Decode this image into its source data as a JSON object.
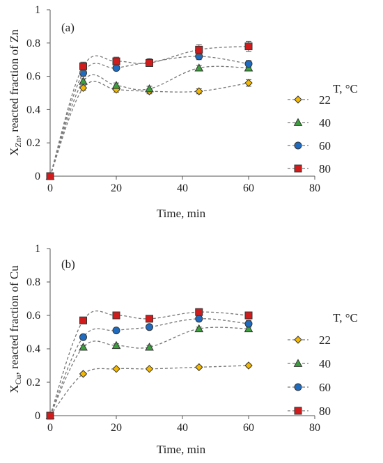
{
  "chart_data": [
    {
      "type": "scatter",
      "panel_label": "(a)",
      "xlabel": "Time, min",
      "ylabel_main": "X",
      "ylabel_sub": "Zn",
      "ylabel_rest": ", reacted fraction of Zn",
      "xlim": [
        0,
        80
      ],
      "ylim": [
        0,
        1
      ],
      "xticks": [
        0,
        20,
        40,
        60,
        80
      ],
      "yticks": [
        0,
        0.2,
        0.4,
        0.6,
        0.8,
        1
      ],
      "ytick_labels": [
        "0",
        "0.2",
        "0.4",
        "0.6",
        "0.8",
        "1"
      ],
      "grid": false,
      "legend_title": "T, °C",
      "legend_position": "right",
      "series": [
        {
          "name": "22",
          "marker": "diamond",
          "color": "#f5b800",
          "x": [
            0,
            10,
            20,
            30,
            45,
            60
          ],
          "y": [
            0,
            0.53,
            0.52,
            0.51,
            0.51,
            0.56
          ],
          "err": [
            0,
            0.015,
            0.015,
            0.015,
            0.015,
            0.02
          ]
        },
        {
          "name": "40",
          "marker": "triangle",
          "color": "#3ca03c",
          "x": [
            0,
            10,
            20,
            30,
            45,
            60
          ],
          "y": [
            0,
            0.57,
            0.545,
            0.525,
            0.65,
            0.65
          ],
          "err": [
            0,
            0.015,
            0.015,
            0.015,
            0.015,
            0.015
          ]
        },
        {
          "name": "60",
          "marker": "circle",
          "color": "#1f6bbf",
          "x": [
            0,
            10,
            20,
            30,
            45,
            60
          ],
          "y": [
            0,
            0.62,
            0.65,
            0.685,
            0.72,
            0.675
          ],
          "err": [
            0,
            0.02,
            0.015,
            0.02,
            0.02,
            0.02
          ]
        },
        {
          "name": "80",
          "marker": "square",
          "color": "#d01c1c",
          "x": [
            0,
            10,
            20,
            30,
            45,
            60
          ],
          "y": [
            0,
            0.66,
            0.69,
            0.68,
            0.76,
            0.78
          ],
          "err": [
            0,
            0.025,
            0.025,
            0.02,
            0.03,
            0.03
          ]
        }
      ]
    },
    {
      "type": "scatter",
      "panel_label": "(b)",
      "xlabel": "Time, min",
      "ylabel_main": "X",
      "ylabel_sub": "Cu",
      "ylabel_rest": ", reacted fraction of Cu",
      "xlim": [
        0,
        80
      ],
      "ylim": [
        0,
        1
      ],
      "xticks": [
        0,
        20,
        40,
        60,
        80
      ],
      "yticks": [
        0,
        0.2,
        0.4,
        0.6,
        0.8,
        1
      ],
      "ytick_labels": [
        "0",
        "0.2",
        "0.4",
        "0.6",
        "0.8",
        "1"
      ],
      "grid": false,
      "legend_title": "T, °C",
      "legend_position": "right",
      "series": [
        {
          "name": "22",
          "marker": "diamond",
          "color": "#f5b800",
          "x": [
            0,
            10,
            20,
            30,
            45,
            60
          ],
          "y": [
            0,
            0.25,
            0.28,
            0.28,
            0.29,
            0.3
          ],
          "err": [
            0,
            0.008,
            0.008,
            0.008,
            0.008,
            0.008
          ]
        },
        {
          "name": "40",
          "marker": "triangle",
          "color": "#3ca03c",
          "x": [
            0,
            10,
            20,
            30,
            45,
            60
          ],
          "y": [
            0,
            0.41,
            0.42,
            0.41,
            0.52,
            0.52
          ],
          "err": [
            0,
            0.01,
            0.01,
            0.01,
            0.01,
            0.01
          ]
        },
        {
          "name": "60",
          "marker": "circle",
          "color": "#1f6bbf",
          "x": [
            0,
            10,
            20,
            30,
            45,
            60
          ],
          "y": [
            0,
            0.47,
            0.51,
            0.53,
            0.58,
            0.55
          ],
          "err": [
            0,
            0.01,
            0.01,
            0.01,
            0.015,
            0.02
          ]
        },
        {
          "name": "80",
          "marker": "square",
          "color": "#d01c1c",
          "x": [
            0,
            10,
            20,
            30,
            45,
            60
          ],
          "y": [
            0,
            0.57,
            0.6,
            0.58,
            0.62,
            0.6
          ],
          "err": [
            0,
            0.015,
            0.02,
            0.02,
            0.02,
            0.02
          ]
        }
      ]
    }
  ]
}
